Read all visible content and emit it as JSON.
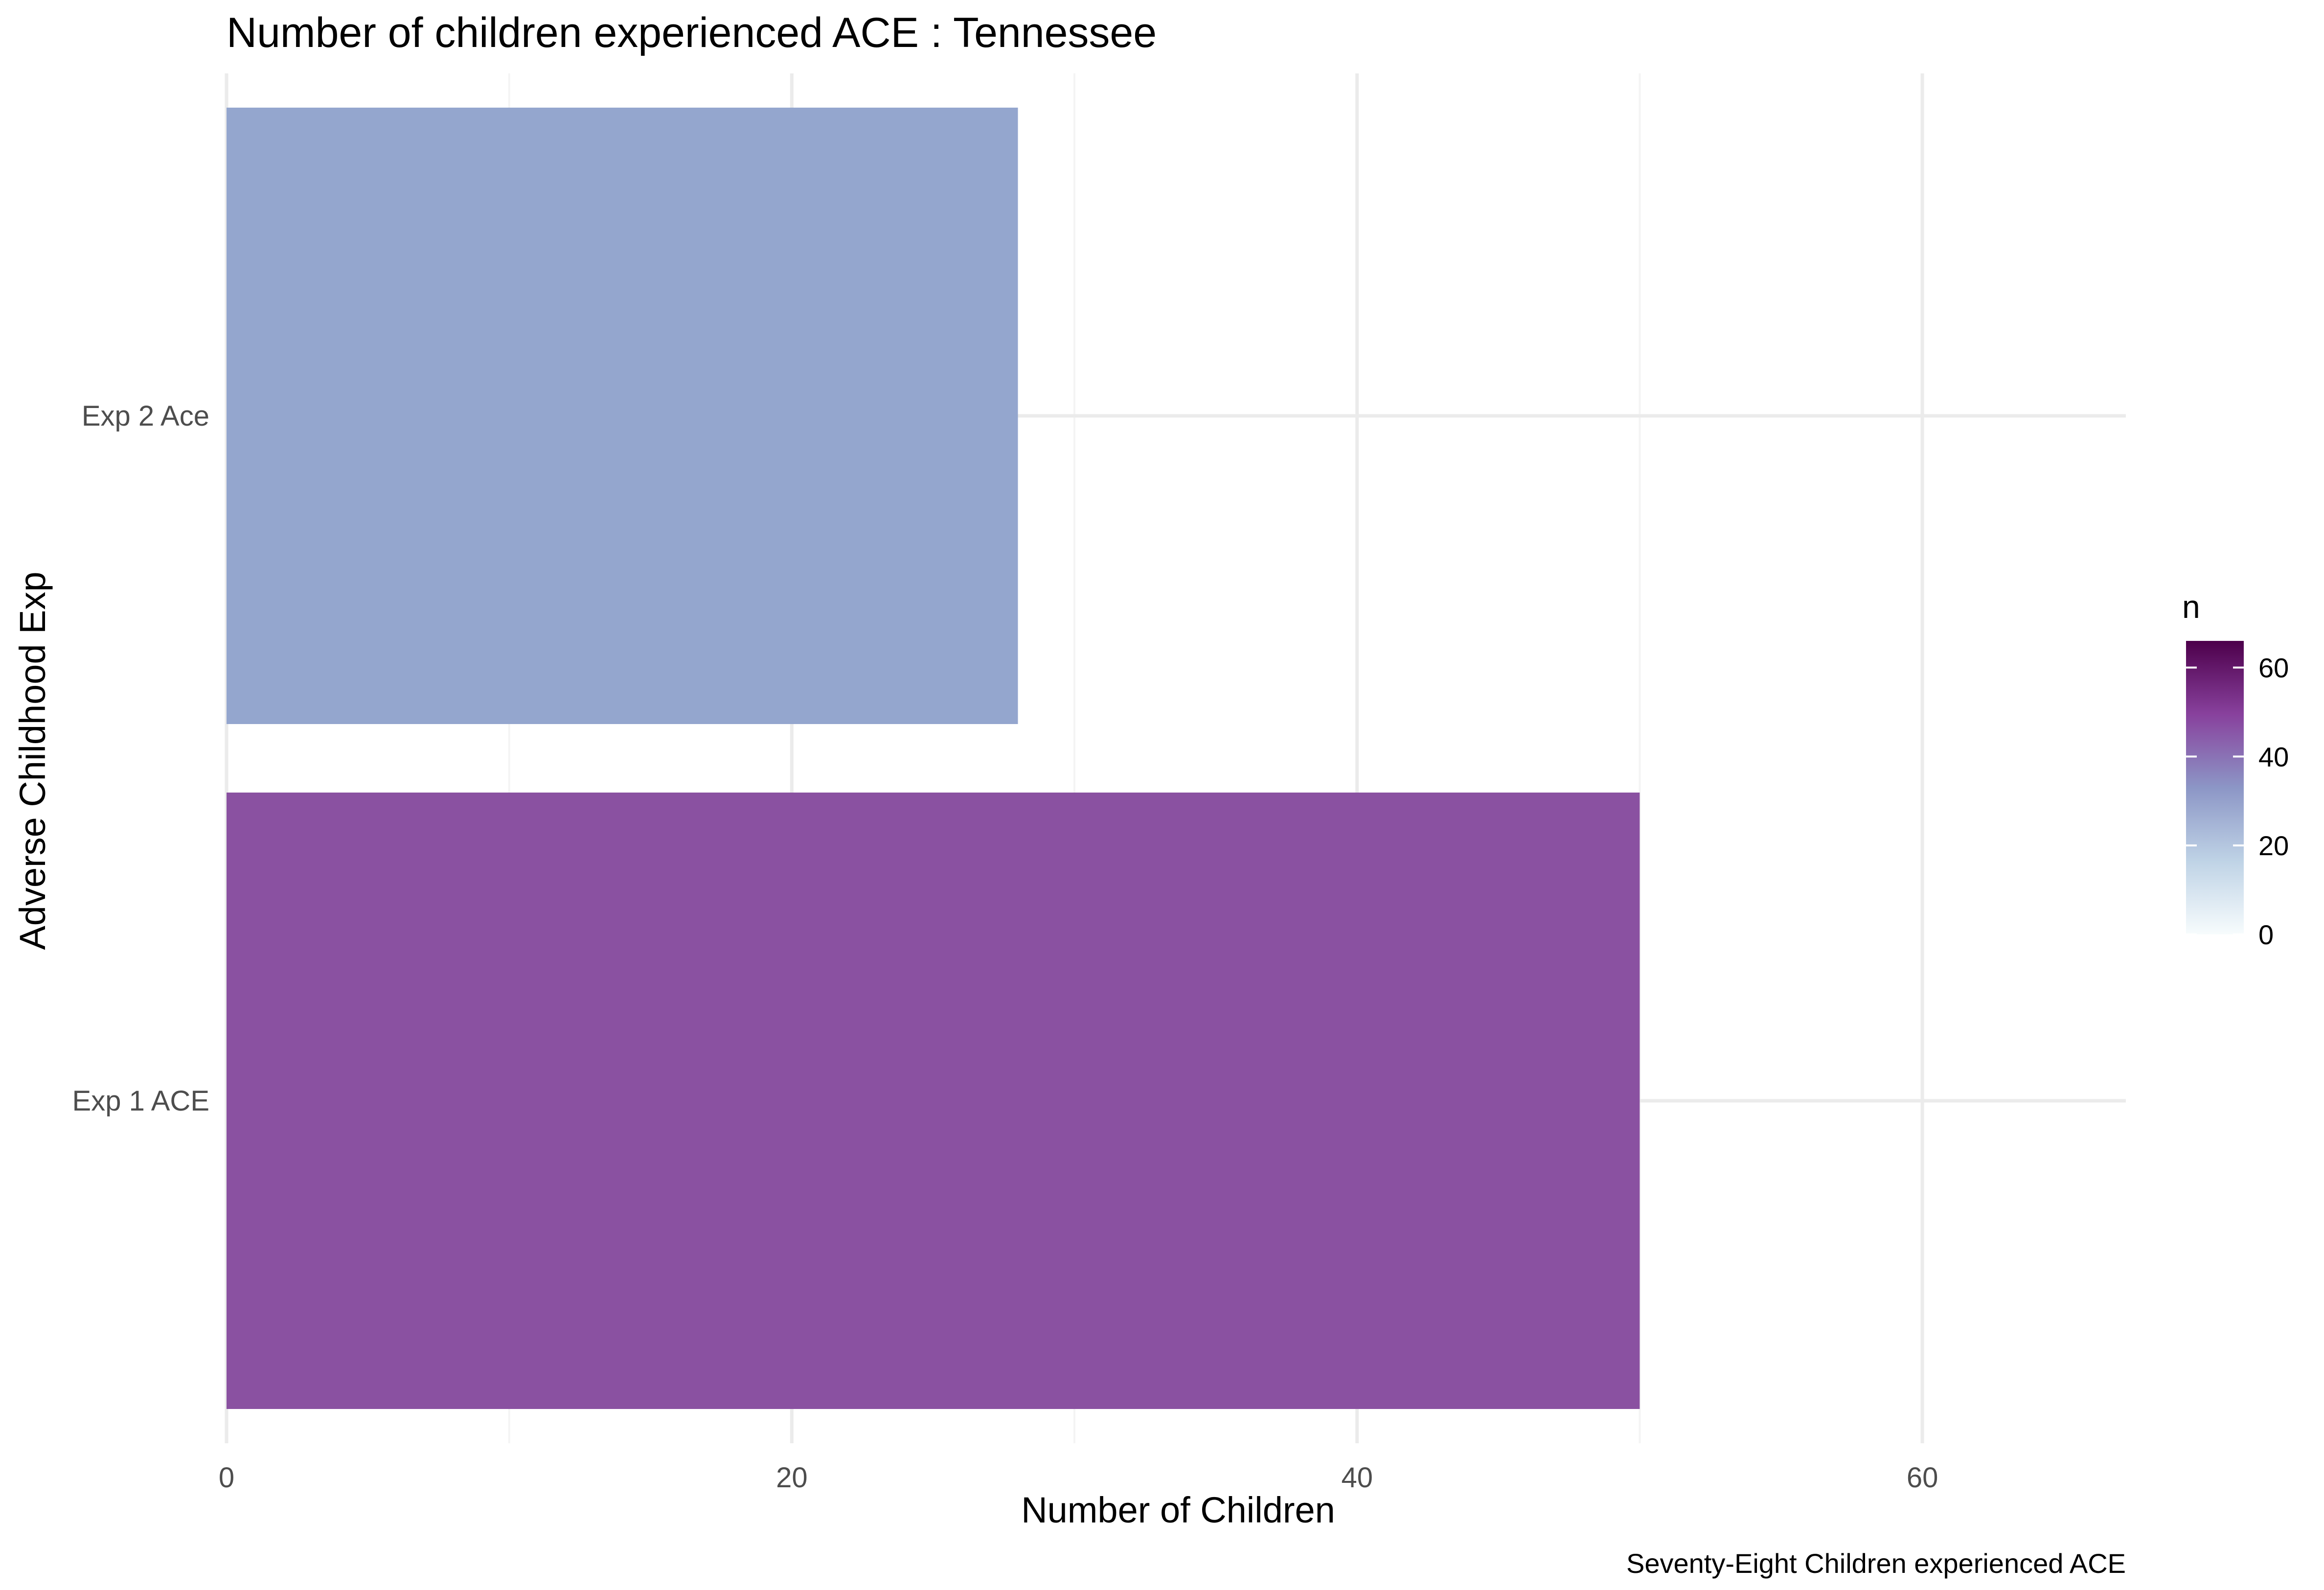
{
  "chart_data": {
    "type": "bar",
    "orientation": "horizontal",
    "title": "Number of children experienced ACE : Tennessee",
    "xlabel": "Number of Children",
    "ylabel": "Adverse Childhood Exp",
    "caption": "Seventy-Eight Children experienced ACE",
    "categories": [
      "Exp 1 ACE",
      "Exp 2 Ace"
    ],
    "values": [
      50,
      28
    ],
    "bar_colors": [
      "#8a51a1",
      "#94a6ce"
    ],
    "xlim": [
      0,
      67.2
    ],
    "xticks": [
      0,
      20,
      40,
      60
    ],
    "xtick_labels": [
      "0",
      "20",
      "40",
      "60"
    ],
    "grid": true,
    "theme": "minimal",
    "legend": {
      "title": "n",
      "type": "colorbar",
      "position": "right",
      "range": [
        0,
        66
      ],
      "ticks": [
        0,
        20,
        40,
        60
      ],
      "tick_labels": [
        "0",
        "20",
        "40",
        "60"
      ],
      "colors": [
        "#f7fcfd",
        "#bfd3e6",
        "#8c96c6",
        "#88419d",
        "#4d004b"
      ]
    }
  }
}
